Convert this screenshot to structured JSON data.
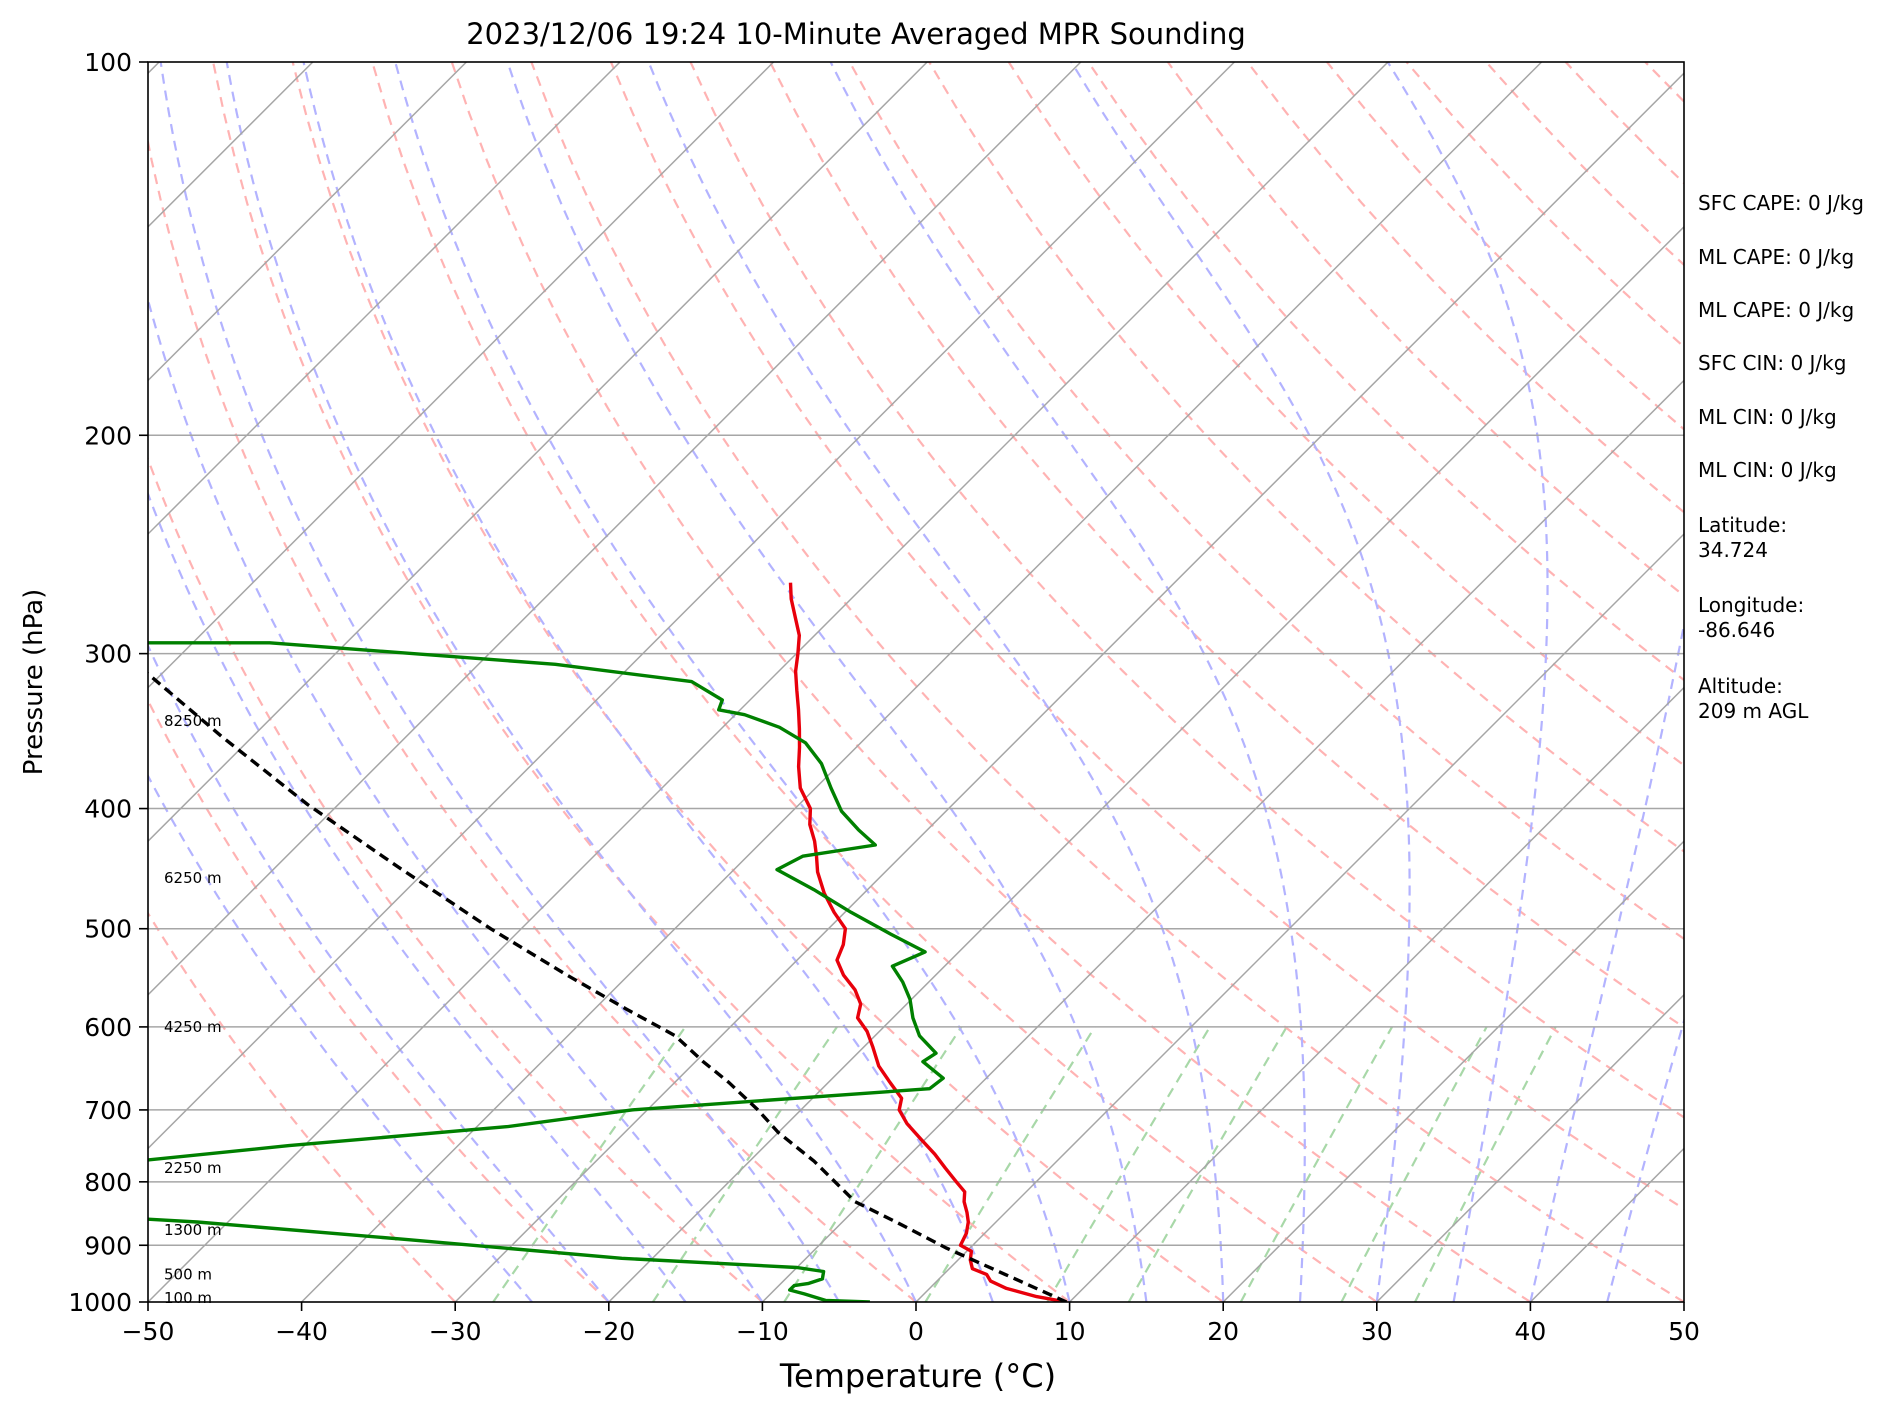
{
  "chart_data": {
    "type": "line",
    "title": "2023/12/06 19:24 10-Minute Averaged MPR Sounding",
    "xlabel": "Temperature (°C)",
    "ylabel": "Pressure (hPa)",
    "xlim": [
      -50,
      50
    ],
    "ylim": [
      1000,
      100
    ],
    "y_scale": "log",
    "skew": "temperature isotherms skewed 45°",
    "grid": true,
    "x_ticks": [
      -50,
      -40,
      -30,
      -20,
      -10,
      0,
      10,
      20,
      30,
      40,
      50
    ],
    "x_tick_labels": [
      "−50",
      "−40",
      "−30",
      "−20",
      "−10",
      "0",
      "10",
      "20",
      "30",
      "40",
      "50"
    ],
    "y_ticks": [
      100,
      200,
      300,
      400,
      500,
      600,
      700,
      800,
      900,
      1000
    ],
    "y_tick_labels": [
      "100",
      "200",
      "300",
      "400",
      "500",
      "600",
      "700",
      "800",
      "900",
      "1000"
    ],
    "height_labels": [
      {
        "pressure": 340,
        "text": "8250 m"
      },
      {
        "pressure": 455,
        "text": "6250 m"
      },
      {
        "pressure": 600,
        "text": "4250 m"
      },
      {
        "pressure": 780,
        "text": "2250 m"
      },
      {
        "pressure": 875,
        "text": "1300 m"
      },
      {
        "pressure": 950,
        "text": "500 m"
      },
      {
        "pressure": 993,
        "text": "100 m"
      }
    ],
    "series": [
      {
        "role": "temperature",
        "color": "#e8000b",
        "points": [
          [
            9.8,
            1000
          ],
          [
            7.5,
            990
          ],
          [
            5.0,
            975
          ],
          [
            3.5,
            962
          ],
          [
            2.8,
            950
          ],
          [
            1.5,
            940
          ],
          [
            0.8,
            925
          ],
          [
            0.3,
            910
          ],
          [
            -0.8,
            900
          ],
          [
            -1.2,
            880
          ],
          [
            -1.8,
            862
          ],
          [
            -2.5,
            847
          ],
          [
            -3.4,
            830
          ],
          [
            -4.0,
            815
          ],
          [
            -5.2,
            800
          ],
          [
            -6.8,
            780
          ],
          [
            -8.4,
            760
          ],
          [
            -10.2,
            740
          ],
          [
            -12.2,
            718
          ],
          [
            -13.6,
            700
          ],
          [
            -14.2,
            685
          ],
          [
            -16.0,
            665
          ],
          [
            -17.8,
            645
          ],
          [
            -19.4,
            623
          ],
          [
            -20.8,
            605
          ],
          [
            -22.3,
            590
          ],
          [
            -23.0,
            575
          ],
          [
            -24.3,
            560
          ],
          [
            -26.0,
            545
          ],
          [
            -27.4,
            530
          ],
          [
            -28.0,
            515
          ],
          [
            -28.9,
            500
          ],
          [
            -30.7,
            485
          ],
          [
            -32.6,
            468
          ],
          [
            -34.4,
            450
          ],
          [
            -35.5,
            437
          ],
          [
            -36.6,
            425
          ],
          [
            -38.0,
            412
          ],
          [
            -39.0,
            400
          ],
          [
            -41.0,
            385
          ],
          [
            -42.5,
            370
          ],
          [
            -43.7,
            357
          ],
          [
            -44.9,
            345
          ],
          [
            -46.2,
            333
          ],
          [
            -47.6,
            321
          ],
          [
            -48.9,
            310
          ],
          [
            -49.9,
            300
          ],
          [
            -51.0,
            290
          ],
          [
            -52.5,
            280
          ],
          [
            -53.9,
            271
          ],
          [
            -55.0,
            263
          ]
        ]
      },
      {
        "role": "dewpoint",
        "color": "#008000",
        "points": [
          [
            -3.0,
            1000
          ],
          [
            -6.0,
            997
          ],
          [
            -7.8,
            985
          ],
          [
            -9.0,
            978
          ],
          [
            -9.0,
            970
          ],
          [
            -8.2,
            966
          ],
          [
            -7.6,
            958
          ],
          [
            -8.0,
            945
          ],
          [
            -10.0,
            938
          ],
          [
            -22.0,
            922
          ],
          [
            -37.5,
            890
          ],
          [
            -52.0,
            862
          ],
          [
            -65.0,
            845
          ],
          [
            -64.5,
            838
          ],
          [
            -63.0,
            828
          ],
          [
            -67.0,
            815
          ],
          [
            -67.0,
            805
          ],
          [
            -68.5,
            795
          ],
          [
            -62.0,
            775
          ],
          [
            -51.0,
            748
          ],
          [
            -38.0,
            722
          ],
          [
            -31.0,
            700
          ],
          [
            -13.0,
            673
          ],
          [
            -12.8,
            660
          ],
          [
            -15.2,
            640
          ],
          [
            -14.9,
            630
          ],
          [
            -17.1,
            610
          ],
          [
            -18.7,
            590
          ],
          [
            -20.1,
            570
          ],
          [
            -21.7,
            552
          ],
          [
            -23.4,
            536
          ],
          [
            -22.2,
            522
          ],
          [
            -25.6,
            505
          ],
          [
            -29.6,
            485
          ],
          [
            -33.5,
            465
          ],
          [
            -37.2,
            448
          ],
          [
            -36.4,
            437
          ],
          [
            -32.4,
            428
          ],
          [
            -34.5,
            416
          ],
          [
            -36.8,
            402
          ],
          [
            -39.0,
            385
          ],
          [
            -41.2,
            368
          ],
          [
            -43.6,
            354
          ],
          [
            -46.3,
            344
          ],
          [
            -49.4,
            336
          ],
          [
            -51.4,
            333
          ],
          [
            -51.8,
            327
          ],
          [
            -55.0,
            316
          ],
          [
            -65.0,
            306
          ],
          [
            -80.0,
            297
          ],
          [
            -85.0,
            294
          ],
          [
            -99.0,
            294
          ]
        ]
      },
      {
        "role": "parcel",
        "color": "#000000",
        "dashed": true,
        "points": [
          [
            9.8,
            1000
          ],
          [
            4.0,
            950
          ],
          [
            -1.5,
            905
          ],
          [
            -6.5,
            862
          ],
          [
            -10.5,
            830
          ],
          [
            -15.8,
            770
          ],
          [
            -20.0,
            730
          ],
          [
            -22.8,
            700
          ],
          [
            -26.5,
            665
          ],
          [
            -29.5,
            640
          ],
          [
            -33.0,
            610
          ],
          [
            -38.0,
            580
          ],
          [
            -44.0,
            545
          ],
          [
            -52.0,
            500
          ],
          [
            -62.0,
            446
          ],
          [
            -72.0,
            397
          ],
          [
            -82.0,
            350
          ],
          [
            -92.0,
            307
          ],
          [
            -101.0,
            270
          ],
          [
            -102.0,
            265
          ]
        ]
      }
    ],
    "side_annotations": [
      "SFC CAPE: 0 J/kg",
      "ML CAPE: 0 J/kg",
      "ML CAPE: 0 J/kg",
      "SFC CIN: 0 J/kg",
      "ML CIN: 0 J/kg",
      "ML CIN: 0 J/kg",
      "Latitude:",
      "34.724",
      "Longitude:",
      "-86.646",
      "Altitude:",
      "209 m AGL"
    ],
    "colors": {
      "isotherm": "#a6a6a6",
      "isobar": "#a6a6a6",
      "dry_adiabat": "#ffb3b3",
      "moist_adiabat": "#b3b3ff",
      "mixing_ratio": "#a8d8a8"
    }
  }
}
